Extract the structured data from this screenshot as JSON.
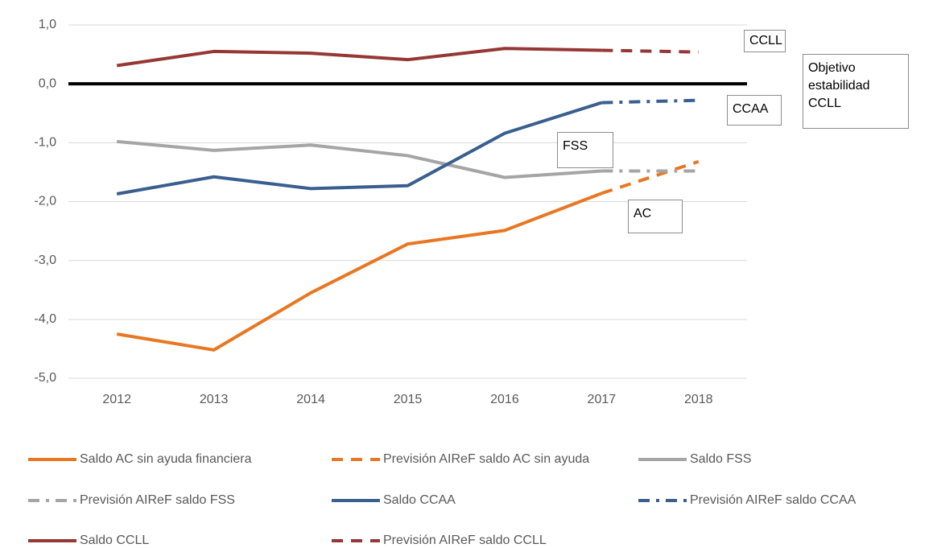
{
  "chart_data": {
    "type": "line",
    "categories": [
      "2012",
      "2013",
      "2014",
      "2015",
      "2016",
      "2017",
      "2018"
    ],
    "ylim": [
      -5,
      1
    ],
    "yticks": [
      {
        "value": 1,
        "label": "1,0"
      },
      {
        "value": 0,
        "label": "0,0"
      },
      {
        "value": -1,
        "label": "-1,0"
      },
      {
        "value": -2,
        "label": "-2,0"
      },
      {
        "value": -3,
        "label": "-3,0"
      },
      {
        "value": -4,
        "label": "-4,0"
      },
      {
        "value": -5,
        "label": "-5,0"
      }
    ],
    "grid": true,
    "reference_lines": [
      {
        "value": 0,
        "label": "Objetivo estabilidad CCLL",
        "color": "#000000"
      }
    ],
    "annotations": [
      "CCLL",
      "CCAA",
      "FSS",
      "AC"
    ],
    "series": [
      {
        "name": "Saldo AC sin ayuda financiera",
        "color": "#e87722",
        "style": "solid",
        "values": [
          -4.25,
          -4.52,
          -3.55,
          -2.72,
          -2.49,
          -1.86,
          null
        ]
      },
      {
        "name": "Previsión AIReF saldo AC sin ayuda",
        "color": "#e87722",
        "style": "dashed",
        "values": [
          null,
          null,
          null,
          null,
          null,
          -1.86,
          -1.32
        ]
      },
      {
        "name": "Saldo FSS",
        "color": "#a5a5a5",
        "style": "solid",
        "values": [
          -0.98,
          -1.13,
          -1.04,
          -1.22,
          -1.59,
          -1.48,
          null
        ]
      },
      {
        "name": "Previsión AIReF saldo FSS",
        "color": "#a5a5a5",
        "style": "dashdot",
        "values": [
          null,
          null,
          null,
          null,
          null,
          -1.48,
          -1.48
        ]
      },
      {
        "name": "Saldo CCAA",
        "color": "#3a5f8f",
        "style": "solid",
        "values": [
          -1.87,
          -1.58,
          -1.78,
          -1.73,
          -0.84,
          -0.32,
          null
        ]
      },
      {
        "name": "Previsión AIReF saldo CCAA",
        "color": "#3a5f8f",
        "style": "dashdot",
        "values": [
          null,
          null,
          null,
          null,
          null,
          -0.32,
          -0.28
        ]
      },
      {
        "name": "Saldo CCLL",
        "color": "#953735",
        "style": "solid",
        "values": [
          0.31,
          0.55,
          0.52,
          0.41,
          0.6,
          0.57,
          null
        ]
      },
      {
        "name": "Previsión AIReF saldo CCLL",
        "color": "#953735",
        "style": "dashed",
        "values": [
          null,
          null,
          null,
          null,
          null,
          0.57,
          0.54
        ]
      }
    ]
  }
}
